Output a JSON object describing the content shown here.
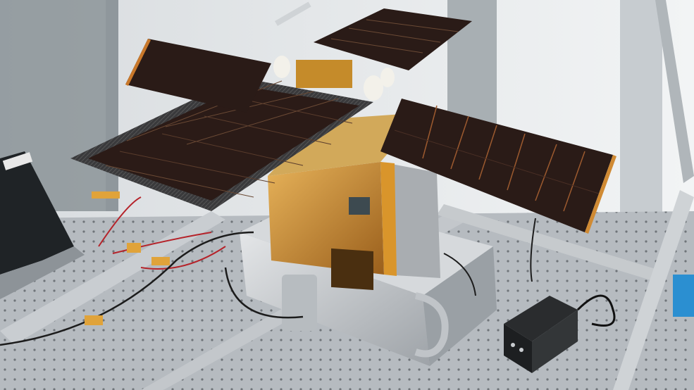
{
  "scene": {
    "subject": "cubesat-satellite-on-optical-table",
    "colors": {
      "wall": "#e9ecee",
      "table": "#b9bec3",
      "solar_cell": "#2a1a16",
      "carbon": "#3b3b3d",
      "gold_foil": "#c98a2a",
      "kapton": "#e0a33a",
      "aluminum": "#c9ccd0"
    }
  }
}
